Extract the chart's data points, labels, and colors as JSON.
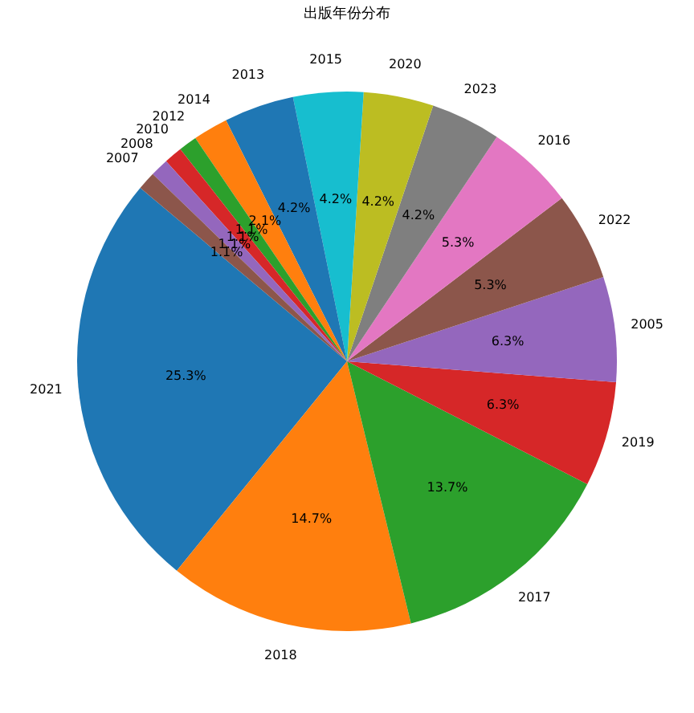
{
  "chart_data": {
    "type": "pie",
    "title": "出版年份分布",
    "categories": [
      "2021",
      "2018",
      "2017",
      "2019",
      "2005",
      "2022",
      "2016",
      "2023",
      "2020",
      "2015",
      "2013",
      "2014",
      "2012",
      "2010",
      "2008",
      "2007"
    ],
    "values": [
      25.3,
      14.7,
      13.7,
      6.3,
      6.3,
      5.3,
      5.3,
      4.2,
      4.2,
      4.2,
      4.2,
      2.1,
      1.1,
      1.1,
      1.1,
      1.1
    ],
    "value_labels": [
      "25.3%",
      "14.7%",
      "13.7%",
      "6.3%",
      "6.3%",
      "5.3%",
      "5.3%",
      "4.2%",
      "4.2%",
      "4.2%",
      "4.2%",
      "2.1%",
      "1.1%",
      "1.1%",
      "1.1%",
      "1.1%"
    ],
    "colors": [
      "#1f77b4",
      "#ff7f0e",
      "#2ca02c",
      "#d62728",
      "#9467bd",
      "#8c564b",
      "#e377c2",
      "#7f7f7f",
      "#bcbd22",
      "#17becf",
      "#1f77b4",
      "#ff7f0e",
      "#2ca02c",
      "#d62728",
      "#9467bd",
      "#8c564b"
    ],
    "legend": false
  }
}
